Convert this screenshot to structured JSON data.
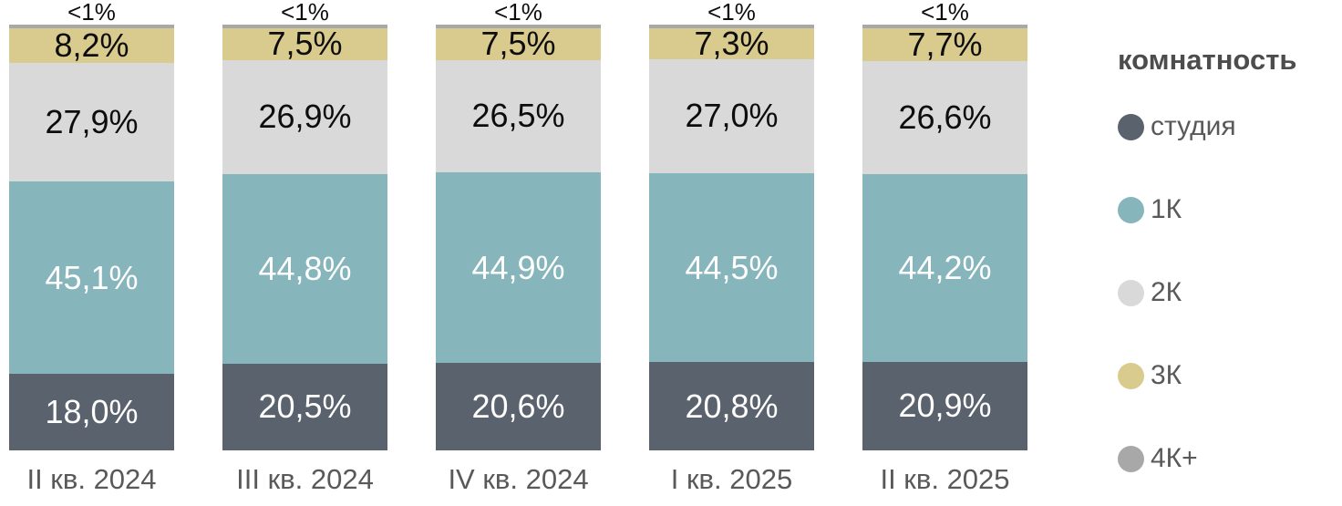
{
  "chart_data": {
    "type": "bar",
    "stacked": true,
    "orientation": "vertical",
    "grid": false,
    "ylim": [
      0,
      100
    ],
    "value_suffix": "%",
    "axis_label_color": "#595959",
    "categories": [
      "II кв. 2024",
      "III кв. 2024",
      "IV кв. 2024",
      "I кв. 2025",
      "II кв. 2025"
    ],
    "series": [
      {
        "name": "студия",
        "color": "#5A626D",
        "text_color": "#ffffff",
        "values": [
          18.0,
          20.5,
          20.6,
          20.8,
          20.9
        ],
        "labels": [
          "18,0%",
          "20,5%",
          "20,6%",
          "20,8%",
          "20,9%"
        ],
        "label_position": "inside"
      },
      {
        "name": "1К",
        "color": "#86B5BB",
        "text_color": "#ffffff",
        "values": [
          45.1,
          44.8,
          44.9,
          44.5,
          44.2
        ],
        "labels": [
          "45,1%",
          "44,8%",
          "44,9%",
          "44,5%",
          "44,2%"
        ],
        "label_position": "inside"
      },
      {
        "name": "2К",
        "color": "#D9D9D9",
        "text_color": "#0d0d0d",
        "values": [
          27.9,
          26.9,
          26.5,
          27.0,
          26.6
        ],
        "labels": [
          "27,9%",
          "26,9%",
          "26,5%",
          "27,0%",
          "26,6%"
        ],
        "label_position": "inside"
      },
      {
        "name": "3К",
        "color": "#D9CB8D",
        "text_color": "#0d0d0d",
        "values": [
          8.2,
          7.5,
          7.5,
          7.3,
          7.7
        ],
        "labels": [
          "8,2%",
          "7,5%",
          "7,5%",
          "7,3%",
          "7,7%"
        ],
        "label_position": "inside"
      },
      {
        "name": "4К+",
        "color": "#A8A8A8",
        "text_color": "#0d0d0d",
        "values": [
          0.8,
          0.8,
          0.8,
          0.8,
          0.8
        ],
        "labels": [
          "<1%",
          "<1%",
          "<1%",
          "<1%",
          "<1%"
        ],
        "label_position": "outside"
      }
    ],
    "legend": {
      "title": "комнатность",
      "position": "right",
      "items": [
        {
          "label": "студия",
          "color": "#5A626D"
        },
        {
          "label": "1К",
          "color": "#86B5BB"
        },
        {
          "label": "2К",
          "color": "#D9D9D9"
        },
        {
          "label": "3К",
          "color": "#D9CB8D"
        },
        {
          "label": "4К+",
          "color": "#A8A8A8"
        }
      ]
    }
  }
}
